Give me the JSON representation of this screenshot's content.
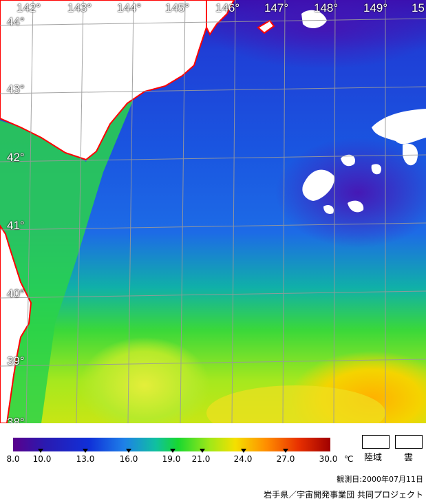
{
  "map": {
    "lon_labels": [
      "142°",
      "143°",
      "144°",
      "145°",
      "146°",
      "147°",
      "148°",
      "149°",
      "15"
    ],
    "lat_labels": [
      "44°",
      "43°",
      "42°",
      "41°",
      "40°",
      "39°",
      "38°"
    ],
    "colors": {
      "land": "#ffffff",
      "coast": "#ff0000",
      "grid": "#9a9a9a"
    }
  },
  "colorbar": {
    "ticks": [
      "8.0",
      "10.0",
      "13.0",
      "16.0",
      "19.0",
      "21.0",
      "24.0",
      "27.0",
      "30.0"
    ],
    "unit": "℃",
    "range": [
      8.0,
      30.0
    ]
  },
  "legend": {
    "land": "陸域",
    "cloud": "雲"
  },
  "observation": "観測日:2000年07月11日",
  "credit": "岩手県／宇宙開発事業団 共同プロジェクト"
}
